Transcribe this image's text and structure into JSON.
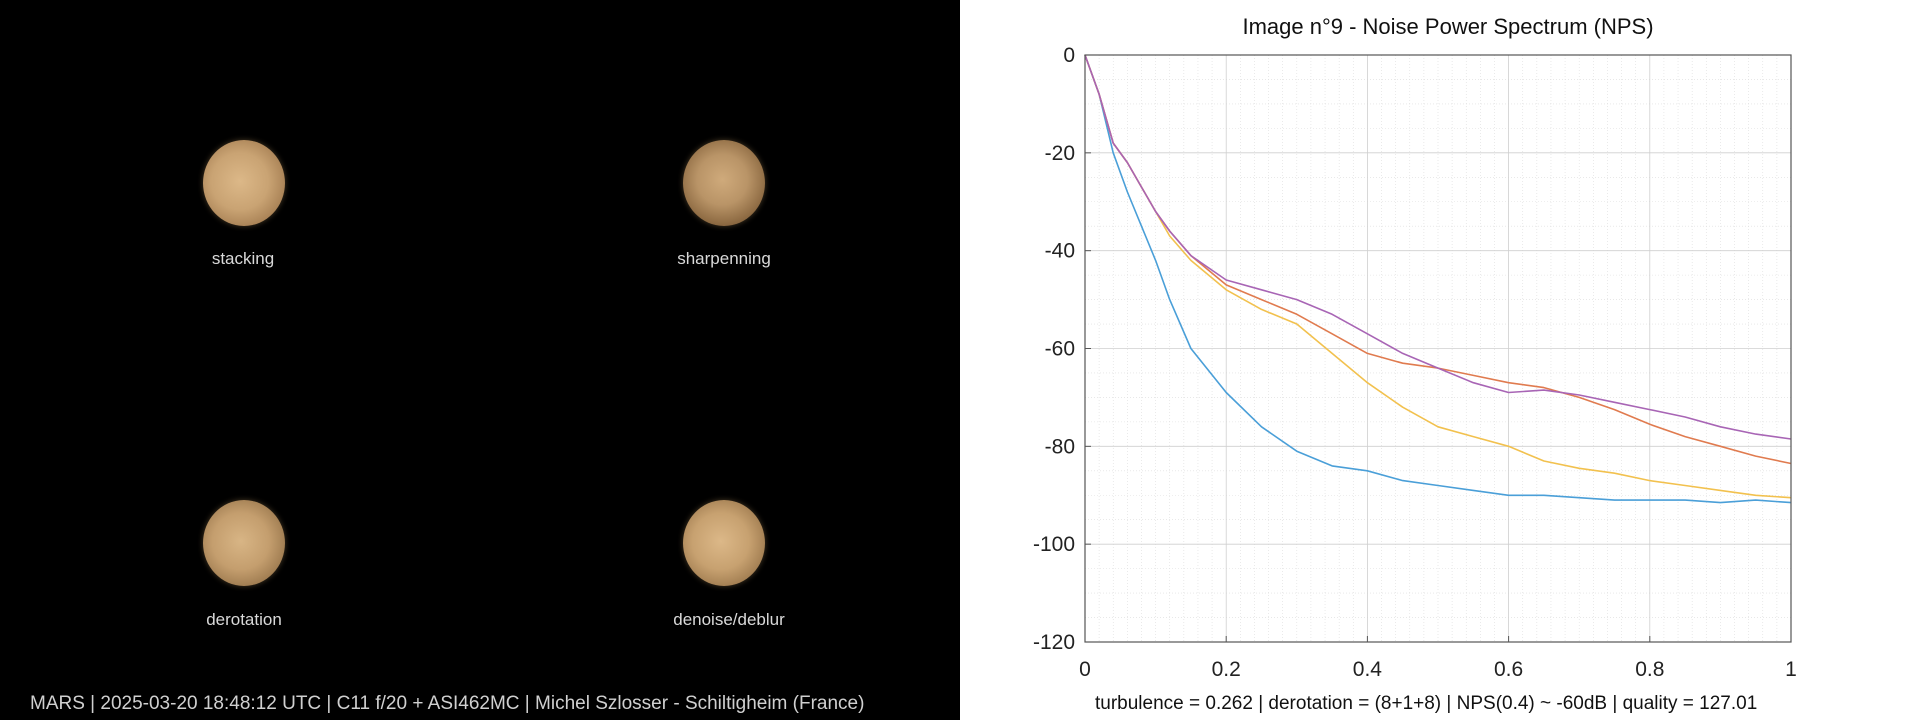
{
  "left_panel": {
    "images": [
      {
        "label": "stacking"
      },
      {
        "label": "sharpenning"
      },
      {
        "label": "derotation"
      },
      {
        "label": "denoise/deblur"
      }
    ],
    "caption": "MARS | 2025-03-20  18:48:12 UTC | C11 f/20 + ASI462MC | Michel Szlosser - Schiltigheim (France)"
  },
  "stats_caption": "turbulence = 0.262 | derotation = (8+1+8) | NPS(0.4) ~ -60dB |  quality = 127.01",
  "chart_data": {
    "type": "line",
    "title": "Image n°9 - Noise Power Spectrum (NPS)",
    "xlabel": "",
    "ylabel": "",
    "xlim": [
      0,
      1
    ],
    "ylim": [
      -120,
      0
    ],
    "x_ticks": [
      "0",
      "0.2",
      "0.4",
      "0.6",
      "0.8",
      "1"
    ],
    "y_ticks": [
      "0",
      "-20",
      "-40",
      "-60",
      "-80",
      "-100",
      "-120"
    ],
    "grid": true,
    "minor_grid": true,
    "x": [
      0,
      0.02,
      0.04,
      0.06,
      0.08,
      0.1,
      0.12,
      0.15,
      0.2,
      0.25,
      0.3,
      0.35,
      0.4,
      0.45,
      0.5,
      0.55,
      0.6,
      0.65,
      0.7,
      0.75,
      0.8,
      0.85,
      0.9,
      0.95,
      1.0
    ],
    "series": [
      {
        "color": "#4a9fd8",
        "values": [
          0,
          -8,
          -20,
          -28,
          -35,
          -42,
          -50,
          -60,
          -69,
          -76,
          -81,
          -84,
          -85,
          -87,
          -88,
          -89,
          -90,
          -90,
          -90.5,
          -91,
          -91,
          -91,
          -91.5,
          -91,
          -91.5
        ]
      },
      {
        "color": "#f2c14e",
        "values": [
          0,
          -8,
          -18,
          -22,
          -27,
          -32,
          -37,
          -42,
          -48,
          -52,
          -55,
          -61,
          -67,
          -72,
          -76,
          -78,
          -80,
          -83,
          -84.5,
          -85.5,
          -87,
          -88,
          -89,
          -90,
          -90.5
        ]
      },
      {
        "color": "#e07b4f",
        "values": [
          0,
          -8,
          -18,
          -22,
          -27,
          -32,
          -36,
          -41,
          -47,
          -50,
          -53,
          -57,
          -61,
          -63,
          -64,
          -65.5,
          -67,
          -68,
          -70,
          -72.5,
          -75.5,
          -78,
          -80,
          -82,
          -83.5
        ]
      },
      {
        "color": "#a865b5",
        "values": [
          0,
          -8,
          -18,
          -22,
          -27,
          -32,
          -36,
          -41,
          -46,
          -48,
          -50,
          -53,
          -57,
          -61,
          -64,
          -67,
          -69,
          -68.5,
          -69.5,
          -71,
          -72.5,
          -74,
          -76,
          -77.5,
          -78.5
        ]
      }
    ]
  }
}
